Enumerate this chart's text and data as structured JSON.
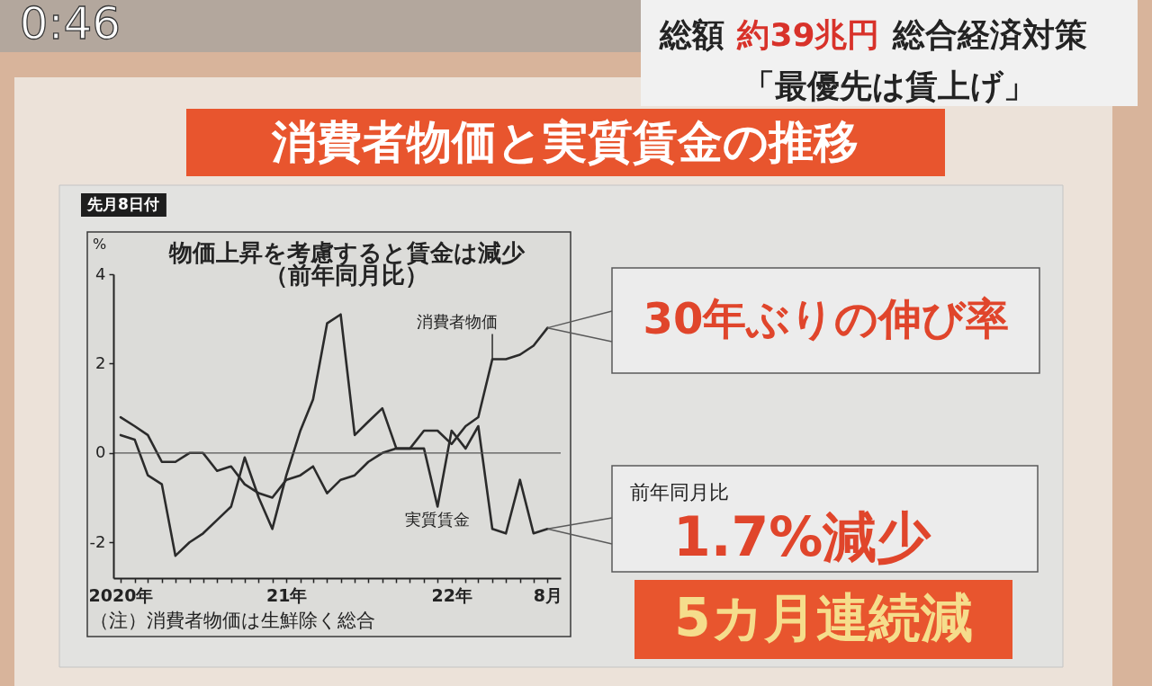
{
  "chart_data": {
    "type": "line",
    "title": "消費者物価と実質賃金の推移",
    "subtitle": "物価上昇を考慮すると賃金は減少（前年同月比）",
    "ylabel": "%",
    "x": [
      "2020-01",
      "2020-02",
      "2020-03",
      "2020-04",
      "2020-05",
      "2020-06",
      "2020-07",
      "2020-08",
      "2020-09",
      "2020-10",
      "2020-11",
      "2020-12",
      "2021-01",
      "2021-02",
      "2021-03",
      "2021-04",
      "2021-05",
      "2021-06",
      "2021-07",
      "2021-08",
      "2021-09",
      "2021-10",
      "2021-11",
      "2021-12",
      "2022-01",
      "2022-02",
      "2022-03",
      "2022-04",
      "2022-05",
      "2022-06",
      "2022-07",
      "2022-08"
    ],
    "series": [
      {
        "name": "消費者物価",
        "color": "#2b2b2b",
        "values": [
          0.8,
          0.6,
          0.4,
          -0.2,
          -0.2,
          0,
          0,
          -0.4,
          -0.3,
          -0.7,
          -0.9,
          -1.0,
          -0.6,
          -0.5,
          -0.3,
          -0.9,
          -0.6,
          -0.5,
          -0.2,
          0,
          0.1,
          0.1,
          0.5,
          0.5,
          0.2,
          0.6,
          0.8,
          2.1,
          2.1,
          2.2,
          2.4,
          2.8
        ]
      },
      {
        "name": "実質賃金",
        "color": "#2b2b2b",
        "values": [
          0.4,
          0.3,
          -0.5,
          -0.7,
          -2.3,
          -2.0,
          -1.8,
          -1.5,
          -1.2,
          -0.1,
          -1.0,
          -1.7,
          -0.5,
          0.5,
          1.2,
          2.9,
          3.1,
          0.4,
          0.7,
          1.0,
          0.1,
          0.1,
          0.1,
          -1.2,
          0.5,
          0.1,
          0.6,
          -1.7,
          -1.8,
          -0.6,
          -1.8,
          -1.7
        ]
      }
    ],
    "xlim": [
      "2019-12-16",
      "2022-08-30"
    ],
    "xticks": [
      {
        "value": "2020-01",
        "label": "2020年"
      },
      {
        "value": "2020-02",
        "label": null
      },
      {
        "value": "2020-03",
        "label": null
      },
      {
        "value": "2020-04",
        "label": null
      },
      {
        "value": "2020-05",
        "label": null
      },
      {
        "value": "2020-06",
        "label": null
      },
      {
        "value": "2020-07",
        "label": null
      },
      {
        "value": "2020-08",
        "label": null
      },
      {
        "value": "2020-09",
        "label": null
      },
      {
        "value": "2020-10",
        "label": null
      },
      {
        "value": "2020-11",
        "label": null
      },
      {
        "value": "2020-12",
        "label": null
      },
      {
        "value": "2021-01",
        "label": "21年"
      },
      {
        "value": "2021-02",
        "label": null
      },
      {
        "value": "2021-03",
        "label": null
      },
      {
        "value": "2021-04",
        "label": null
      },
      {
        "value": "2021-05",
        "label": null
      },
      {
        "value": "2021-06",
        "label": null
      },
      {
        "value": "2021-07",
        "label": null
      },
      {
        "value": "2021-08",
        "label": null
      },
      {
        "value": "2021-09",
        "label": null
      },
      {
        "value": "2021-10",
        "label": null
      },
      {
        "value": "2021-11",
        "label": null
      },
      {
        "value": "2021-12",
        "label": null
      },
      {
        "value": "2022-01",
        "label": "22年"
      },
      {
        "value": "2022-02",
        "label": null
      },
      {
        "value": "2022-03",
        "label": null
      },
      {
        "value": "2022-04",
        "label": null
      },
      {
        "value": "2022-05",
        "label": null
      },
      {
        "value": "2022-06",
        "label": null
      },
      {
        "value": "2022-07",
        "label": null
      },
      {
        "value": "2022-08",
        "label": "8月"
      }
    ],
    "ylim": [
      -2.8,
      4
    ],
    "yticks": [
      -2,
      0,
      2,
      4
    ],
    "ref_lines": [
      {
        "axis": "y",
        "value": 0,
        "color": "#555555"
      }
    ],
    "grid": false,
    "legend": false,
    "marker": "none",
    "line_style": "solid",
    "annotations": [
      {
        "text": "30年ぶりの伸び率",
        "x": "2022-08",
        "y": 2.8
      },
      {
        "text": "前年同月比",
        "x": "2022-08",
        "y": -1.7
      },
      {
        "text": "1.7%減少",
        "x": "2022-08",
        "y": -1.7
      },
      "5カ月連続減",
      "（注）消費者物価は生鮮除く総合",
      "先月8日付",
      "総額",
      "約39兆円",
      "総合経済対策",
      "「最優先は賃上げ」",
      "0:46"
    ]
  }
}
